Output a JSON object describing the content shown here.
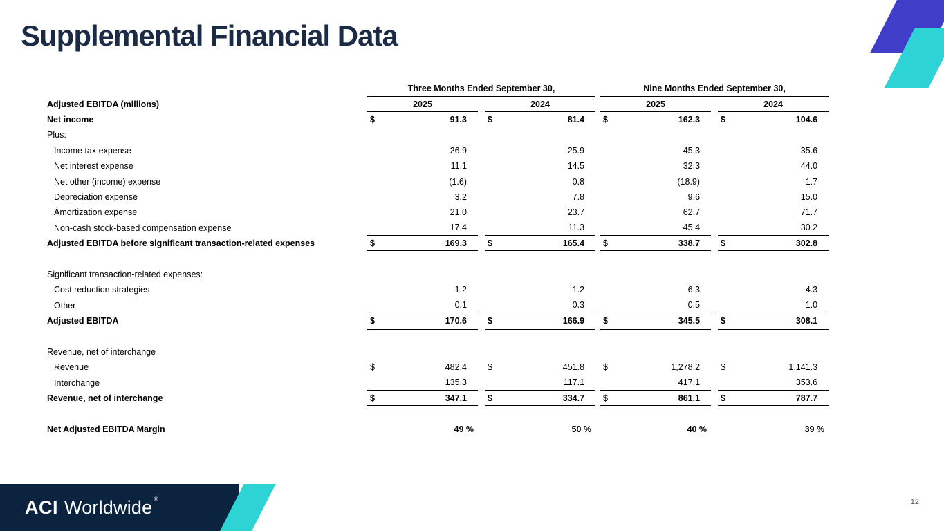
{
  "slide": {
    "title": "Supplemental Financial Data",
    "page_number": "12"
  },
  "logo": {
    "name": "ACI Worldwide",
    "aci": "ACI",
    "worldwide": "Worldwide",
    "registered": "®"
  },
  "colors": {
    "title_navy": "#1c2b45",
    "footer_navy": "#0c2340",
    "accent_teal": "#2ed3d6",
    "accent_blue": "#403dc9",
    "line_black": "#000000",
    "page_number_gray": "#595959"
  },
  "table": {
    "currency_symbol": "$",
    "label_header": "Adjusted EBITDA (millions)",
    "groups": [
      {
        "label": "Three Months Ended September 30,",
        "years": [
          "2025",
          "2024"
        ]
      },
      {
        "label": "Nine Months Ended September 30,",
        "years": [
          "2025",
          "2024"
        ]
      }
    ],
    "rows": [
      {
        "label": "Net income",
        "bold": true,
        "dollar": true,
        "values": [
          "91.3",
          "81.4",
          "162.3",
          "104.6"
        ]
      },
      {
        "label": "Plus:"
      },
      {
        "label": "Income tax expense",
        "indent": 1,
        "values": [
          "26.9",
          "25.9",
          "45.3",
          "35.6"
        ]
      },
      {
        "label": "Net interest expense",
        "indent": 1,
        "values": [
          "11.1",
          "14.5",
          "32.3",
          "44.0"
        ]
      },
      {
        "label": "Net other (income) expense",
        "indent": 1,
        "values": [
          "(1.6)",
          "0.8",
          "(18.9)",
          "1.7"
        ]
      },
      {
        "label": "Depreciation expense",
        "indent": 1,
        "values": [
          "3.2",
          "7.8",
          "9.6",
          "15.0"
        ]
      },
      {
        "label": "Amortization expense",
        "indent": 1,
        "values": [
          "21.0",
          "23.7",
          "62.7",
          "71.7"
        ]
      },
      {
        "label": "Non-cash stock-based compensation expense",
        "indent": 1,
        "values": [
          "17.4",
          "11.3",
          "45.4",
          "30.2"
        ]
      },
      {
        "label": "Adjusted EBITDA before significant transaction-related expenses",
        "bold": true,
        "dollar": true,
        "total": true,
        "values": [
          "169.3",
          "165.4",
          "338.7",
          "302.8"
        ]
      },
      {
        "spacer": true
      },
      {
        "label": "Significant transaction-related expenses:"
      },
      {
        "label": "Cost reduction strategies",
        "indent": 1,
        "values": [
          "1.2",
          "1.2",
          "6.3",
          "4.3"
        ]
      },
      {
        "label": "Other",
        "indent": 1,
        "values": [
          "0.1",
          "0.3",
          "0.5",
          "1.0"
        ]
      },
      {
        "label": "Adjusted EBITDA",
        "bold": true,
        "dollar": true,
        "total": true,
        "values": [
          "170.6",
          "166.9",
          "345.5",
          "308.1"
        ]
      },
      {
        "spacer": true
      },
      {
        "label": "Revenue, net of interchange"
      },
      {
        "label": "Revenue",
        "indent": 1,
        "dollar": true,
        "values": [
          "482.4",
          "451.8",
          "1,278.2",
          "1,141.3"
        ]
      },
      {
        "label": "Interchange",
        "indent": 1,
        "values": [
          "135.3",
          "117.1",
          "417.1",
          "353.6"
        ]
      },
      {
        "label": "Revenue, net of interchange",
        "bold": true,
        "dollar": true,
        "total": true,
        "values": [
          "347.1",
          "334.7",
          "861.1",
          "787.7"
        ]
      },
      {
        "spacer": true
      },
      {
        "label": "Net Adjusted EBITDA Margin",
        "bold": true,
        "unit": "%",
        "values": [
          "49",
          "50",
          "40",
          "39"
        ]
      }
    ]
  }
}
